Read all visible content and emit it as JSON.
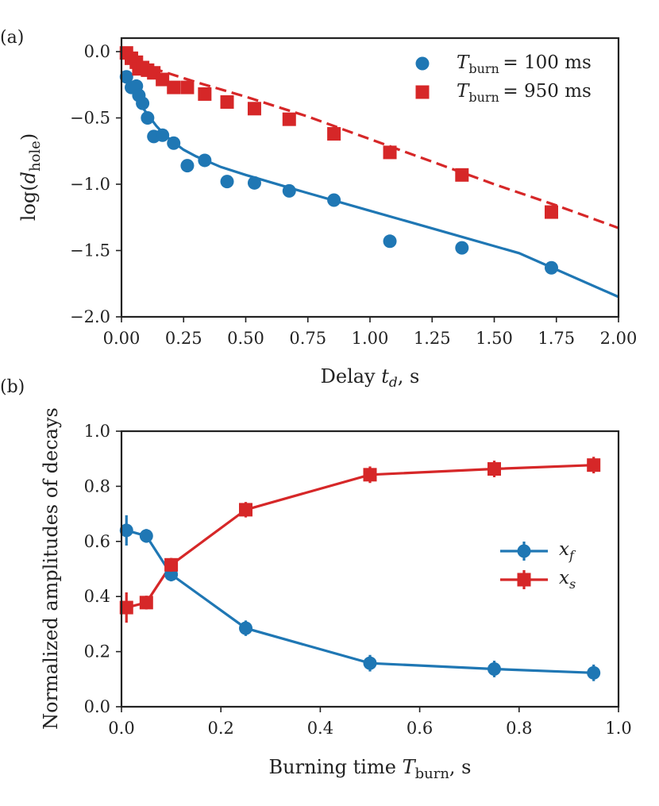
{
  "colors": {
    "blue": "#1f77b4",
    "red": "#d62728",
    "axis": "#222222"
  },
  "chart_data": [
    {
      "id": "a",
      "type": "scatter",
      "panel_label": "(a)",
      "xlabel": "Delay t_d, s",
      "ylabel": "log(d_hole)",
      "xlim": [
        0,
        2
      ],
      "ylim": [
        -2,
        0.1
      ],
      "xticks": [
        0,
        0.25,
        0.5,
        0.75,
        1.0,
        1.25,
        1.5,
        1.75,
        2.0
      ],
      "xtick_labels": [
        "0.00",
        "0.25",
        "0.50",
        "0.75",
        "1.00",
        "1.25",
        "1.50",
        "1.75",
        "2.00"
      ],
      "yticks": [
        0.0,
        -0.5,
        -1.0,
        -1.5,
        -2.0
      ],
      "ytick_labels": [
        "0.0",
        "−0.5",
        "−1.0",
        "−1.5",
        "−2.0"
      ],
      "legend_position": "top-right",
      "series": [
        {
          "name": "T_burn = 100 ms",
          "legend": {
            "sym": "T",
            "sub": "burn",
            "rest": " = 100 ms"
          },
          "color": "#1f77b4",
          "marker": "circle",
          "x": [
            0.02,
            0.04,
            0.06,
            0.07,
            0.085,
            0.105,
            0.13,
            0.165,
            0.21,
            0.265,
            0.335,
            0.425,
            0.535,
            0.675,
            0.855,
            1.08,
            1.37,
            1.73
          ],
          "y": [
            -0.19,
            -0.27,
            -0.26,
            -0.33,
            -0.39,
            -0.5,
            -0.64,
            -0.63,
            -0.69,
            -0.86,
            -0.82,
            -0.98,
            -0.99,
            -1.05,
            -1.12,
            -1.43,
            -1.48,
            -1.63
          ],
          "fit": {
            "style": "solid",
            "x": [
              0.0,
              0.02,
              0.04,
              0.06,
              0.08,
              0.1,
              0.12,
              0.14,
              0.17,
              0.2,
              0.25,
              0.3,
              0.4,
              0.5,
              0.7,
              1.0,
              1.3,
              1.6,
              2.0
            ],
            "y": [
              -0.15,
              -0.22,
              -0.29,
              -0.35,
              -0.41,
              -0.46,
              -0.51,
              -0.56,
              -0.62,
              -0.67,
              -0.74,
              -0.79,
              -0.87,
              -0.93,
              -1.04,
              -1.2,
              -1.36,
              -1.52,
              -1.85
            ]
          }
        },
        {
          "name": "T_burn = 950 ms",
          "legend": {
            "sym": "T",
            "sub": "burn",
            "rest": " = 950 ms"
          },
          "color": "#d62728",
          "marker": "square",
          "x": [
            0.02,
            0.04,
            0.06,
            0.07,
            0.085,
            0.105,
            0.13,
            0.165,
            0.21,
            0.265,
            0.335,
            0.425,
            0.535,
            0.675,
            0.855,
            1.08,
            1.37,
            1.73
          ],
          "y": [
            -0.01,
            -0.05,
            -0.08,
            -0.13,
            -0.12,
            -0.14,
            -0.16,
            -0.21,
            -0.27,
            -0.27,
            -0.32,
            -0.38,
            -0.43,
            -0.51,
            -0.62,
            -0.76,
            -0.93,
            -1.21
          ],
          "fit": {
            "style": "dashed",
            "x": [
              0.0,
              0.05,
              0.1,
              0.15,
              0.2,
              0.3,
              0.5,
              0.75,
              1.0,
              1.25,
              1.5,
              1.75,
              2.0
            ],
            "y": [
              -0.02,
              -0.06,
              -0.1,
              -0.14,
              -0.17,
              -0.23,
              -0.34,
              -0.49,
              -0.66,
              -0.83,
              -1.0,
              -1.16,
              -1.33
            ]
          }
        }
      ]
    },
    {
      "id": "b",
      "type": "line",
      "panel_label": "(b)",
      "xlabel": "Burning time T_burn, s",
      "ylabel": "Normalized amplitudes of decays",
      "xlim": [
        0,
        1
      ],
      "ylim": [
        0,
        1
      ],
      "xticks": [
        0,
        0.2,
        0.4,
        0.6,
        0.8,
        1.0
      ],
      "xtick_labels": [
        "0.0",
        "0.2",
        "0.4",
        "0.6",
        "0.8",
        "1.0"
      ],
      "yticks": [
        0,
        0.2,
        0.4,
        0.6,
        0.8,
        1.0
      ],
      "ytick_labels": [
        "0.0",
        "0.2",
        "0.4",
        "0.6",
        "0.8",
        "1.0"
      ],
      "legend_position": "center-right",
      "series": [
        {
          "name": "x_f",
          "legend": {
            "sym": "x",
            "sub": "f",
            "rest": ""
          },
          "color": "#1f77b4",
          "marker": "circle",
          "x": [
            0.01,
            0.05,
            0.1,
            0.25,
            0.5,
            0.75,
            0.95
          ],
          "y": [
            0.64,
            0.62,
            0.48,
            0.285,
            0.158,
            0.137,
            0.123
          ],
          "yerr": [
            0.055,
            0.025,
            0.025,
            0.028,
            0.03,
            0.03,
            0.03
          ]
        },
        {
          "name": "x_s",
          "legend": {
            "sym": "x",
            "sub": "s",
            "rest": ""
          },
          "color": "#d62728",
          "marker": "square",
          "x": [
            0.01,
            0.05,
            0.1,
            0.25,
            0.5,
            0.75,
            0.95
          ],
          "y": [
            0.36,
            0.378,
            0.515,
            0.715,
            0.842,
            0.863,
            0.877
          ],
          "yerr": [
            0.055,
            0.025,
            0.025,
            0.028,
            0.03,
            0.03,
            0.03
          ]
        }
      ]
    }
  ]
}
